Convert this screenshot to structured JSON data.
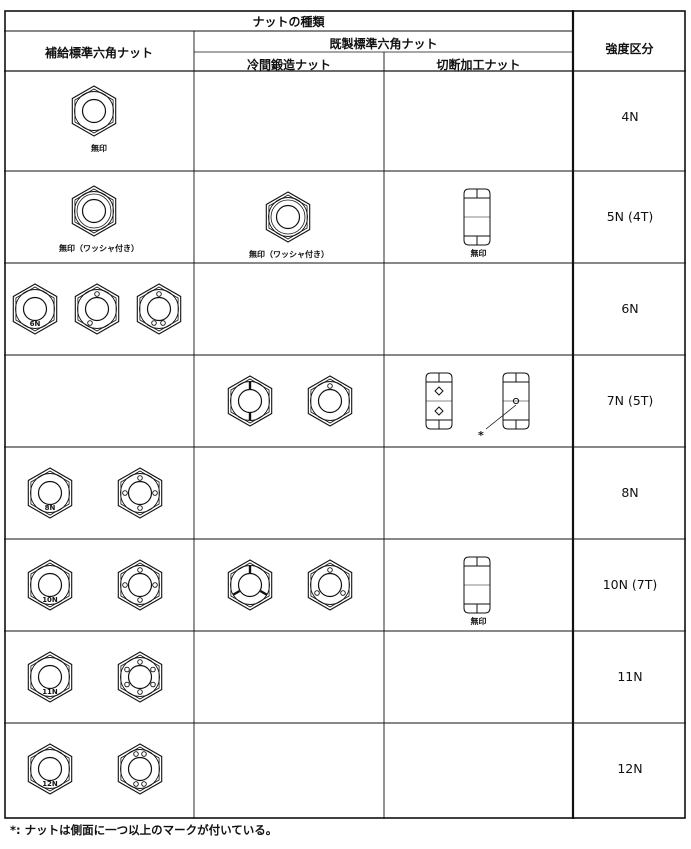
{
  "header": {
    "nut_types": "ナットの種類",
    "supply_std": "補給標準六角ナット",
    "existing_std": "既製標準六角ナット",
    "cold_forged": "冷間鍛造ナット",
    "cut_machined": "切断加工ナット",
    "strength_class": "強度区分"
  },
  "rows": [
    {
      "grade": "4N",
      "supply_marks": [
        {
          "type": "plain",
          "label": "無印"
        }
      ],
      "cold": [],
      "cut": []
    },
    {
      "grade": "5N (4T)",
      "supply_marks": [
        {
          "type": "washer",
          "label": "無印（ワッシャ付き）"
        }
      ],
      "cold": [
        {
          "type": "washer",
          "label": "無印（ワッシャ付き）"
        }
      ],
      "cut": [
        {
          "type": "side",
          "label": "無印"
        }
      ]
    },
    {
      "grade": "6N",
      "supply_marks": [
        {
          "type": "stamp",
          "text": "6N"
        },
        {
          "type": "dots2"
        },
        {
          "type": "dots3"
        }
      ],
      "cold": [],
      "cut": []
    },
    {
      "grade": "7N (5T)",
      "supply_marks": [],
      "cold": [
        {
          "type": "slots2"
        },
        {
          "type": "dot1"
        }
      ],
      "cut": [
        {
          "type": "side-diamond"
        },
        {
          "type": "side-dot"
        }
      ],
      "cut_note": "*"
    },
    {
      "grade": "8N",
      "supply_marks": [
        {
          "type": "stamp",
          "text": "8N"
        },
        {
          "type": "dots4"
        }
      ],
      "cold": [],
      "cut": []
    },
    {
      "grade": "10N (7T)",
      "supply_marks": [
        {
          "type": "stamp",
          "text": "10N"
        },
        {
          "type": "dots4"
        }
      ],
      "cold": [
        {
          "type": "slots3"
        },
        {
          "type": "dots3r"
        }
      ],
      "cut": [
        {
          "type": "side",
          "label": "無印"
        }
      ]
    },
    {
      "grade": "11N",
      "supply_marks": [
        {
          "type": "stamp",
          "text": "11N"
        },
        {
          "type": "dots6"
        }
      ],
      "cold": [],
      "cut": []
    },
    {
      "grade": "12N",
      "supply_marks": [
        {
          "type": "stamp",
          "text": "12N"
        },
        {
          "type": "dots4b"
        }
      ],
      "cold": [],
      "cut": []
    }
  ],
  "footnote": "*: ナットは側面に一つ以上のマークが付いている。"
}
